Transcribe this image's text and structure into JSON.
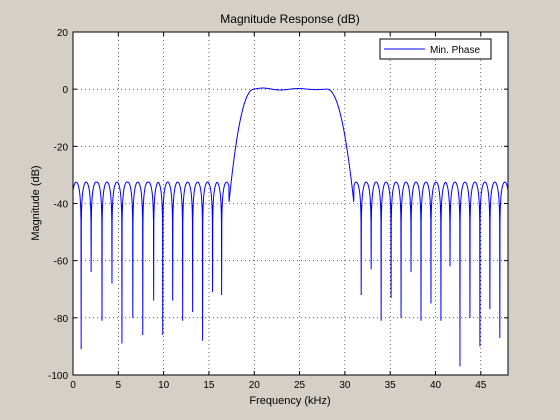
{
  "chart_data": {
    "type": "line",
    "title": "Magnitude Response (dB)",
    "xlabel": "Frequency (kHz)",
    "ylabel": "Magnitude (dB)",
    "xlim": [
      0,
      48
    ],
    "ylim": [
      -100,
      20
    ],
    "xticks": [
      0,
      5,
      10,
      15,
      20,
      25,
      30,
      35,
      40,
      45
    ],
    "yticks": [
      20,
      0,
      -20,
      -40,
      -60,
      -80,
      -100
    ],
    "xtick_labels": [
      "0",
      "5",
      "10",
      "15",
      "20",
      "25",
      "30",
      "35",
      "40",
      "45"
    ],
    "ytick_labels": [
      "20",
      "0",
      "-20",
      "-40",
      "-60",
      "-80",
      "-100"
    ],
    "grid": true,
    "legend_position": "top-right",
    "background": "#d4d0c8",
    "line_color": "#0000ff",
    "series": [
      {
        "name": "Min. Phase",
        "passband": [
          20,
          28
        ],
        "passband_db": 0,
        "lower_transition": [
          17.2,
          19.8
        ],
        "upper_transition": [
          28.3,
          31.0
        ],
        "stopband_ripple_peak_db": -32.5,
        "null_frequencies": [
          0.9,
          2.0,
          3.2,
          4.3,
          5.4,
          6.6,
          7.7,
          8.9,
          9.9,
          11.0,
          12.1,
          13.2,
          14.3,
          15.4,
          16.4,
          31.8,
          32.9,
          34.0,
          35.1,
          36.2,
          37.3,
          38.4,
          39.5,
          40.6,
          41.6,
          42.7,
          43.8,
          44.9,
          46.0,
          47.1
        ],
        "null_depths_db": [
          -91,
          -64,
          -81,
          -68,
          -89,
          -80,
          -86,
          -74,
          -86,
          -74,
          -81,
          -78,
          -88,
          -71,
          -72,
          -72,
          -63,
          -81,
          -73,
          -80,
          -64,
          -81,
          -75,
          -81,
          -62,
          -97,
          -80,
          -90,
          -77,
          -87
        ]
      }
    ]
  }
}
